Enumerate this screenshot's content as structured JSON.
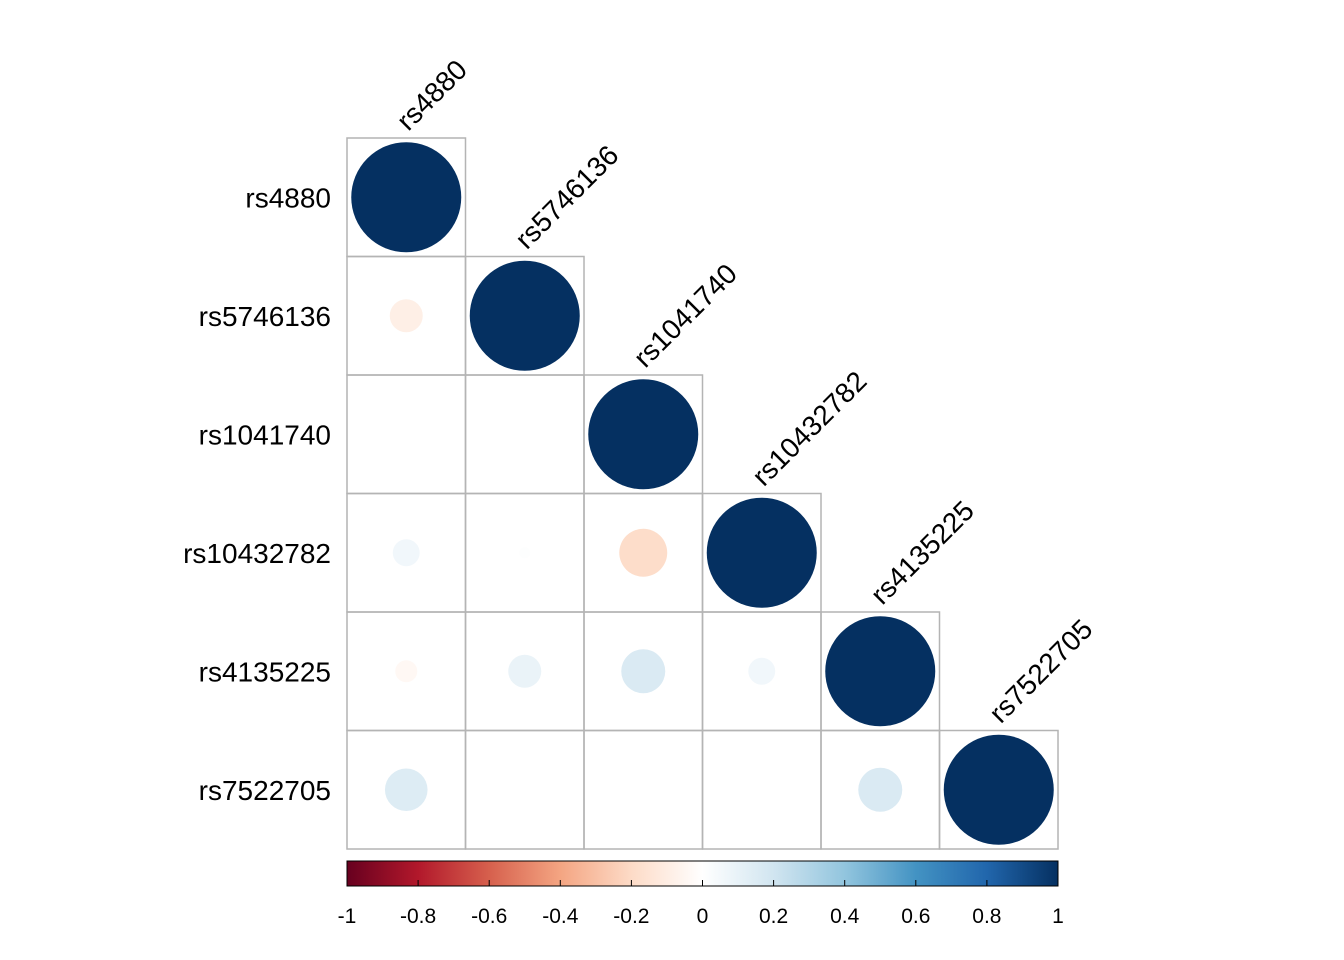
{
  "chart_data": {
    "type": "heatmap",
    "style": "correlation-circles-lower-triangle",
    "variables": [
      "rs4880",
      "rs5746136",
      "rs1041740",
      "rs10432782",
      "rs4135225",
      "rs7522705"
    ],
    "matrix": [
      [
        1.0,
        null,
        null,
        null,
        null,
        null
      ],
      [
        -0.09,
        1.0,
        null,
        null,
        null,
        null
      ],
      [
        0.0,
        0.0,
        1.0,
        null,
        null,
        null
      ],
      [
        0.06,
        0.01,
        -0.19,
        1.0,
        null,
        null
      ],
      [
        -0.04,
        0.09,
        0.16,
        0.06,
        1.0,
        null
      ],
      [
        0.15,
        0.0,
        0.0,
        0.0,
        0.16,
        1.0
      ]
    ],
    "colorbar": {
      "min": -1,
      "max": 1,
      "ticks": [
        "-1",
        "-0.8",
        "-0.6",
        "-0.4",
        "-0.2",
        "0",
        "0.2",
        "0.4",
        "0.6",
        "0.8",
        "1"
      ],
      "colors": [
        "#67001F",
        "#B2182B",
        "#D6604D",
        "#F4A582",
        "#FDDBC7",
        "#FFFFFF",
        "#D1E5F0",
        "#92C5DE",
        "#4393C3",
        "#2166AC",
        "#053061"
      ]
    },
    "grid": true
  }
}
